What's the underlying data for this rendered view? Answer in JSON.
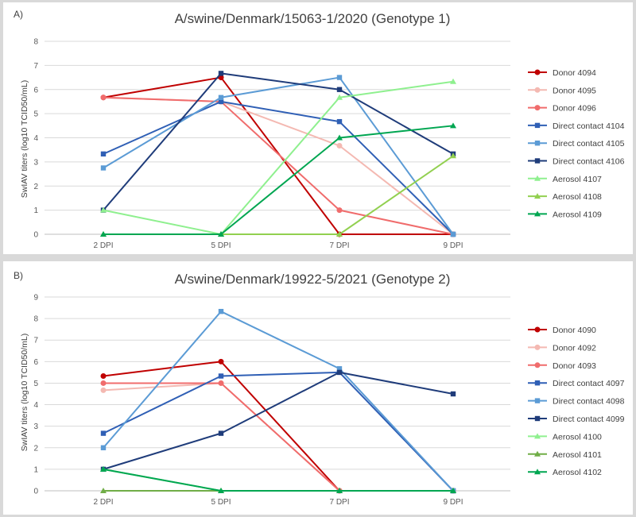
{
  "chart_data": [
    {
      "type": "line",
      "panel_label": "A)",
      "title": "A/swine/Denmark/15063-1/2020 (Genotype 1)",
      "xlabel": "",
      "ylabel": "SwIAV titers (log10 TCID50/mL)",
      "categories": [
        "2 DPI",
        "5 DPI",
        "7 DPI",
        "9 DPI"
      ],
      "ylim": [
        0,
        8
      ],
      "yticks": [
        0,
        1,
        2,
        3,
        4,
        5,
        6,
        7,
        8
      ],
      "grid": true,
      "legend_position": "right",
      "series": [
        {
          "name": "Donor 4094",
          "values": [
            5.67,
            6.5,
            0,
            0
          ],
          "color": "#c00000",
          "marker": "circle"
        },
        {
          "name": "Donor 4095",
          "values": [
            5.67,
            5.5,
            3.67,
            0
          ],
          "color": "#f4b9b2",
          "marker": "circle"
        },
        {
          "name": "Donor 4096",
          "values": [
            5.67,
            5.5,
            1.0,
            0
          ],
          "color": "#f06c6c",
          "marker": "circle"
        },
        {
          "name": "Direct contact 4104",
          "values": [
            3.33,
            5.5,
            4.67,
            0
          ],
          "color": "#2f5fb5",
          "marker": "square"
        },
        {
          "name": "Direct contact 4105",
          "values": [
            2.75,
            5.67,
            6.5,
            0
          ],
          "color": "#5b9bd5",
          "marker": "square"
        },
        {
          "name": "Direct contact 4106",
          "values": [
            1.0,
            6.67,
            6.0,
            3.33
          ],
          "color": "#1f3c7a",
          "marker": "square"
        },
        {
          "name": "Aerosol 4107",
          "values": [
            1.0,
            0,
            5.67,
            6.33
          ],
          "color": "#8ff08f",
          "marker": "triangle"
        },
        {
          "name": "Aerosol 4108",
          "values": [
            0,
            0,
            0,
            3.25
          ],
          "color": "#92d050",
          "marker": "triangle"
        },
        {
          "name": "Aerosol 4109",
          "values": [
            0,
            0,
            4.0,
            4.5
          ],
          "color": "#00a651",
          "marker": "triangle"
        }
      ]
    },
    {
      "type": "line",
      "panel_label": "B)",
      "title": "A/swine/Denmark/19922-5/2021 (Genotype 2)",
      "xlabel": "",
      "ylabel": "SwIAV titers (log10 TCID50/mL)",
      "categories": [
        "2 DPI",
        "5 DPI",
        "7 DPI",
        "9 DPI"
      ],
      "ylim": [
        0,
        9
      ],
      "yticks": [
        0,
        1,
        2,
        3,
        4,
        5,
        6,
        7,
        8,
        9
      ],
      "grid": true,
      "legend_position": "right",
      "series": [
        {
          "name": "Donor 4090",
          "values": [
            5.33,
            6.0,
            0,
            0
          ],
          "color": "#c00000",
          "marker": "circle"
        },
        {
          "name": "Donor 4092",
          "values": [
            4.67,
            5.0,
            0,
            0
          ],
          "color": "#f4b9b2",
          "marker": "circle"
        },
        {
          "name": "Donor 4093",
          "values": [
            5.0,
            5.0,
            0,
            0
          ],
          "color": "#f06c6c",
          "marker": "circle"
        },
        {
          "name": "Direct contact 4097",
          "values": [
            2.67,
            5.33,
            5.5,
            0
          ],
          "color": "#2f5fb5",
          "marker": "square"
        },
        {
          "name": "Direct contact 4098",
          "values": [
            2.0,
            8.33,
            5.67,
            0
          ],
          "color": "#5b9bd5",
          "marker": "square"
        },
        {
          "name": "Direct contact 4099",
          "values": [
            1.0,
            2.67,
            5.5,
            4.5
          ],
          "color": "#1f3c7a",
          "marker": "square"
        },
        {
          "name": "Aerosol 4100",
          "values": [
            1.0,
            0,
            0,
            0
          ],
          "color": "#8ff08f",
          "marker": "triangle"
        },
        {
          "name": "Aerosol 4101",
          "values": [
            0,
            0,
            0,
            0
          ],
          "color": "#70ad47",
          "marker": "triangle"
        },
        {
          "name": "Aerosol 4102",
          "values": [
            1.0,
            0,
            0,
            0
          ],
          "color": "#00a651",
          "marker": "triangle"
        }
      ]
    }
  ]
}
